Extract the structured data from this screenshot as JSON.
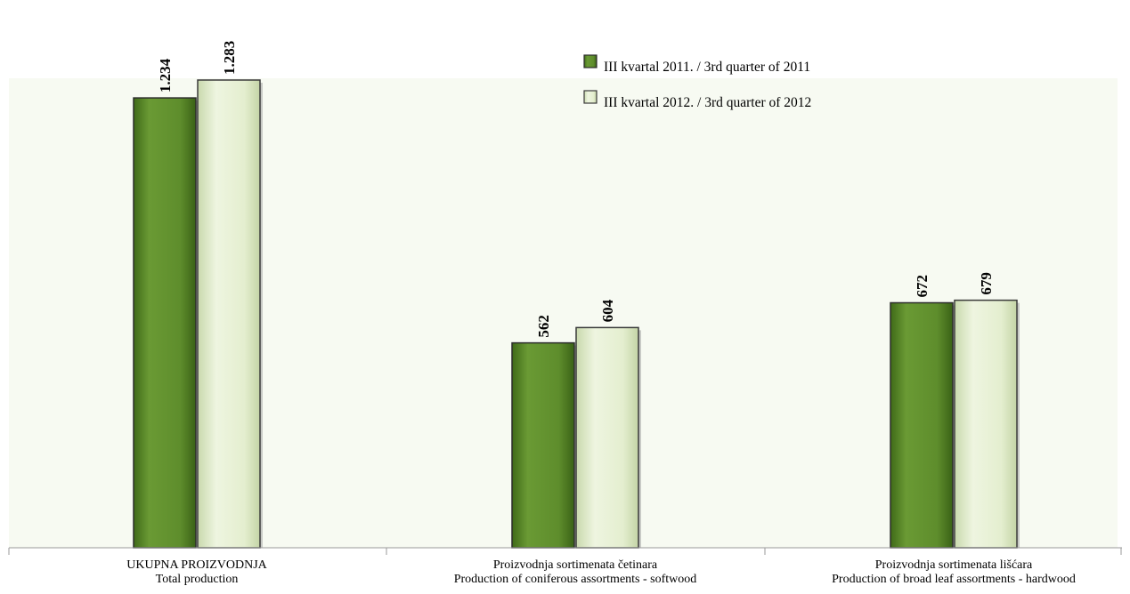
{
  "chart_data": {
    "type": "bar",
    "categories": [
      [
        "UKUPNA PROIZVODNJA",
        "Total production"
      ],
      [
        "Proizvodnja sortimenata četinara",
        "Production of coniferous assortments - softwood"
      ],
      [
        "Proizvodnja sortimenata lišćara",
        "Production of broad leaf assortments - hardwood"
      ]
    ],
    "series": [
      {
        "name": "III kvartal 2011. / 3rd quarter of 2011",
        "values": [
          1234,
          562,
          672
        ],
        "labels": [
          "1.234",
          "562",
          "672"
        ],
        "color": "#5b8a2a"
      },
      {
        "name": "III kvartal 2012. / 3rd quarter of 2012",
        "values": [
          1283,
          604,
          679
        ],
        "labels": [
          "1.283",
          "604",
          "679"
        ],
        "color": "#e4efcf"
      }
    ],
    "ylim": [
      0,
      1400
    ],
    "legend_position": "top-center",
    "grid": false
  }
}
